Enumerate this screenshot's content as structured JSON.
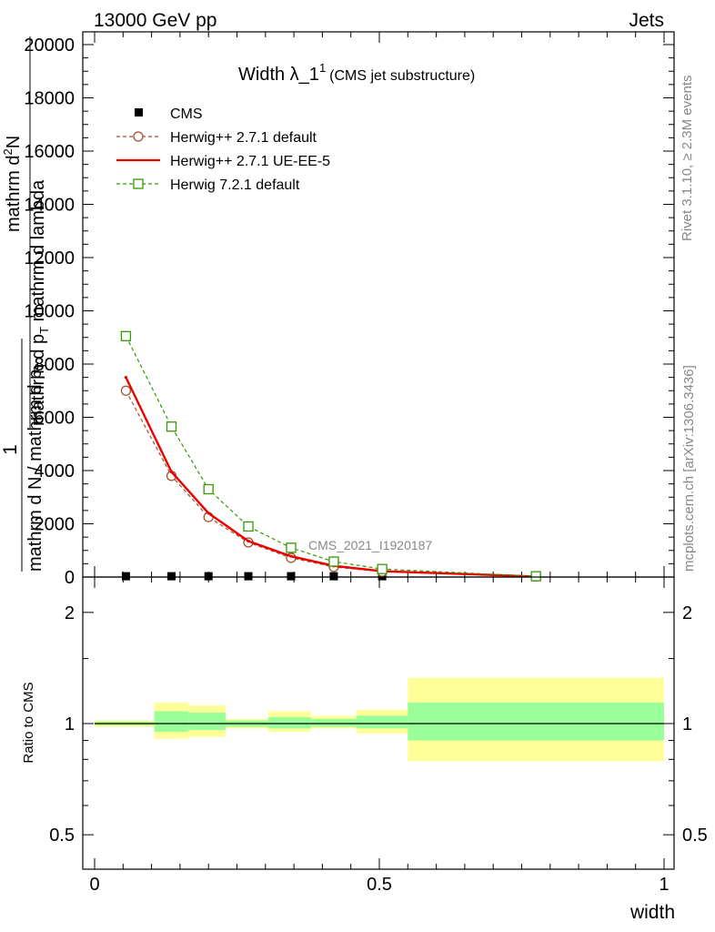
{
  "header": {
    "left": "13000 GeV pp",
    "right": "Jets"
  },
  "side": {
    "rivet": "Rivet 3.1.10, ≥ 2.3M events",
    "mcplots": "mcplots.cern.ch [arXiv:1306.3436]"
  },
  "watermark": "CMS_2021_I1920187",
  "title": {
    "main": "Width λ_1",
    "sup": "1",
    "sub": "(CMS jet substructure)"
  },
  "ylabel": {
    "frac_num": "1",
    "frac_den": "mathrm d N / mathrm d p",
    "frac_den_sub": "T",
    "numer": "mathrm d",
    "numer_sup": "2",
    "numer_rest": "N",
    "denom": "mathrm d p",
    "denom_sub": "T",
    "denom_rest": " mathrm d lambda"
  },
  "ratio_ylabel": "Ratio to CMS",
  "xlabel": "width",
  "chart_data": [
    {
      "type": "line",
      "panel": "main",
      "xlim": [
        0,
        1
      ],
      "ylim": [
        0,
        20000
      ],
      "yticks": [
        {
          "value": 0,
          "label": "0"
        },
        {
          "value": 2000,
          "label": "2000"
        },
        {
          "value": 4000,
          "label": "4000"
        },
        {
          "value": 6000,
          "label": "6000"
        },
        {
          "value": 8000,
          "label": "8000"
        },
        {
          "value": 10000,
          "label": "10000"
        },
        {
          "value": 12000,
          "label": "12000"
        },
        {
          "value": 14000,
          "label": "14000"
        },
        {
          "value": 16000,
          "label": "16000"
        },
        {
          "value": 18000,
          "label": "18000"
        },
        {
          "value": 20000,
          "label": "20000"
        }
      ],
      "series": [
        {
          "name": "CMS",
          "color": "#000000",
          "marker": "square-filled",
          "x": [
            0.055,
            0.135,
            0.2,
            0.27,
            0.345,
            0.42,
            0.505,
            0.775
          ],
          "y": [
            30,
            30,
            30,
            30,
            30,
            30,
            30,
            30
          ]
        },
        {
          "name": "Herwig++ 2.7.1 default",
          "color": "#a0522d",
          "marker": "circle-open",
          "dashed": true,
          "x": [
            0.055,
            0.135,
            0.2,
            0.27,
            0.345,
            0.42,
            0.505,
            0.775
          ],
          "y": [
            7000,
            3800,
            2250,
            1300,
            720,
            380,
            200,
            20
          ]
        },
        {
          "name": "Herwig++ 2.7.1 UE-EE-5",
          "color": "#ee0000",
          "marker": "none",
          "dashed": false,
          "x": [
            0.055,
            0.135,
            0.2,
            0.27,
            0.345,
            0.42,
            0.505,
            0.775
          ],
          "y": [
            7500,
            3950,
            2400,
            1350,
            780,
            420,
            220,
            20
          ]
        },
        {
          "name": "Herwig 7.2.1 default",
          "color": "#339900",
          "marker": "square-open",
          "dashed": true,
          "x": [
            0.055,
            0.135,
            0.2,
            0.27,
            0.345,
            0.42,
            0.505,
            0.775
          ],
          "y": [
            9050,
            5650,
            3300,
            1900,
            1100,
            580,
            300,
            30
          ]
        }
      ]
    },
    {
      "type": "bar",
      "panel": "ratio",
      "xlim": [
        0,
        1
      ],
      "ylim": [
        0.44,
        2.34
      ],
      "log_scale": true,
      "yticks": [
        {
          "value": 0.5,
          "label": "0.5"
        },
        {
          "value": 1,
          "label": "1"
        },
        {
          "value": 2,
          "label": "2"
        }
      ],
      "xticks": [
        {
          "value": 0,
          "label": "0"
        },
        {
          "value": 0.5,
          "label": "0.5"
        },
        {
          "value": 1,
          "label": "1"
        }
      ],
      "bins": [
        {
          "lo": 0.0,
          "hi": 0.105,
          "green": [
            0.99,
            1.01
          ],
          "yellow": [
            0.98,
            1.02
          ]
        },
        {
          "lo": 0.105,
          "hi": 0.165,
          "green": [
            0.95,
            1.08
          ],
          "yellow": [
            0.91,
            1.14
          ]
        },
        {
          "lo": 0.165,
          "hi": 0.23,
          "green": [
            0.96,
            1.07
          ],
          "yellow": [
            0.92,
            1.12
          ]
        },
        {
          "lo": 0.23,
          "hi": 0.305,
          "green": [
            0.98,
            1.02
          ],
          "yellow": [
            0.97,
            1.03
          ]
        },
        {
          "lo": 0.305,
          "hi": 0.38,
          "green": [
            0.97,
            1.04
          ],
          "yellow": [
            0.95,
            1.08
          ]
        },
        {
          "lo": 0.38,
          "hi": 0.46,
          "green": [
            0.98,
            1.03
          ],
          "yellow": [
            0.97,
            1.05
          ]
        },
        {
          "lo": 0.46,
          "hi": 0.55,
          "green": [
            0.97,
            1.05
          ],
          "yellow": [
            0.94,
            1.09
          ]
        },
        {
          "lo": 0.55,
          "hi": 1.0,
          "green": [
            0.9,
            1.14
          ],
          "yellow": [
            0.79,
            1.33
          ]
        }
      ],
      "colors": {
        "green": "#99ff99",
        "yellow": "#ffff99"
      }
    }
  ]
}
